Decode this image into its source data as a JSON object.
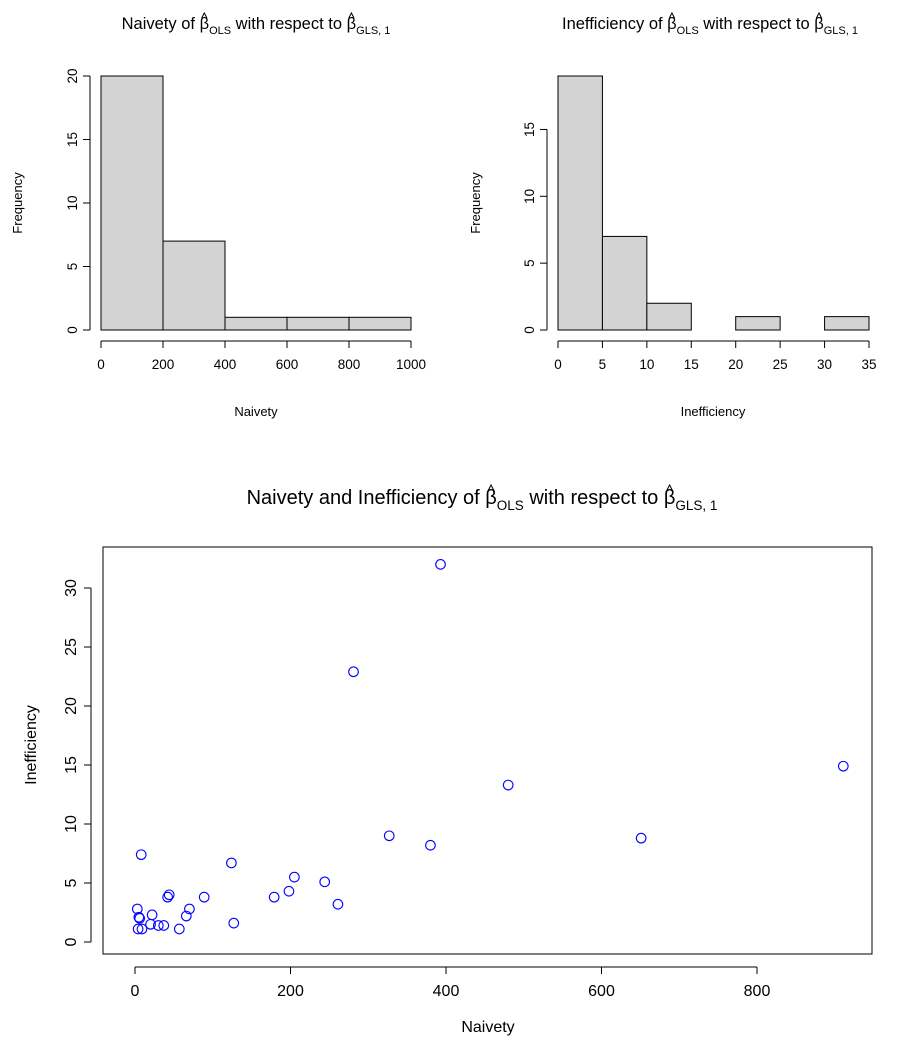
{
  "chart_data": [
    {
      "id": "hist_naivety",
      "type": "bar",
      "title": "Naivety of β̂OLS with respect to β̂GLS, 1",
      "title_parts": {
        "prefix": "Naivety of ",
        "hat1": "β",
        "sub1": "OLS",
        "mid": " with respect to ",
        "hat2": "β",
        "sub2": "GLS, 1"
      },
      "xlabel": "Naivety",
      "ylabel": "Frequency",
      "bins": [
        [
          0,
          200
        ],
        [
          200,
          400
        ],
        [
          400,
          600
        ],
        [
          600,
          800
        ],
        [
          800,
          1000
        ]
      ],
      "values": [
        20,
        7,
        1,
        1,
        1
      ],
      "xlim": [
        0,
        1000
      ],
      "ylim": [
        0,
        20
      ],
      "xticks": [
        0,
        200,
        400,
        600,
        800,
        1000
      ],
      "yticks": [
        0,
        5,
        10,
        15,
        20
      ],
      "fill_color": "#d3d3d3"
    },
    {
      "id": "hist_inefficiency",
      "type": "bar",
      "title": "Inefficiency of β̂OLS with respect to β̂GLS, 1",
      "title_parts": {
        "prefix": "Inefficiency of ",
        "hat1": "β",
        "sub1": "OLS",
        "mid": " with respect to ",
        "hat2": "β",
        "sub2": "GLS, 1"
      },
      "xlabel": "Inefficiency",
      "ylabel": "Frequency",
      "bins": [
        [
          0,
          5
        ],
        [
          5,
          10
        ],
        [
          10,
          15
        ],
        [
          15,
          20
        ],
        [
          20,
          25
        ],
        [
          25,
          30
        ],
        [
          30,
          35
        ]
      ],
      "values": [
        19,
        7,
        2,
        0,
        1,
        0,
        1
      ],
      "xlim": [
        0,
        35
      ],
      "ylim": [
        0,
        19
      ],
      "xticks": [
        0,
        5,
        10,
        15,
        20,
        25,
        30,
        35
      ],
      "yticks": [
        0,
        5,
        10,
        15
      ],
      "fill_color": "#d3d3d3"
    },
    {
      "id": "scatter_naivety_inefficiency",
      "type": "scatter",
      "title": "Naivety and Inefficiency of β̂OLS with respect to β̂GLS, 1",
      "title_parts": {
        "prefix": "Naivety and Inefficiency of ",
        "hat1": "β",
        "sub1": "OLS",
        "mid": " with respect to ",
        "hat2": "β",
        "sub2": "GLS, 1"
      },
      "xlabel": "Naivety",
      "ylabel": "Inefficiency",
      "xlim": [
        -37,
        943
      ],
      "ylim": [
        0,
        32
      ],
      "xticks": [
        0,
        200,
        400,
        600,
        800
      ],
      "yticks": [
        0,
        5,
        10,
        15,
        20,
        25,
        30
      ],
      "marker_color": "#0000ff",
      "points": [
        [
          3,
          2.8
        ],
        [
          5,
          2.1
        ],
        [
          6,
          2.0
        ],
        [
          4,
          1.1
        ],
        [
          9,
          1.1
        ],
        [
          8,
          7.4
        ],
        [
          20,
          1.5
        ],
        [
          22,
          2.3
        ],
        [
          30,
          1.4
        ],
        [
          37,
          1.4
        ],
        [
          42,
          3.8
        ],
        [
          44,
          4.0
        ],
        [
          57,
          1.1
        ],
        [
          66,
          2.2
        ],
        [
          70,
          2.8
        ],
        [
          89,
          3.8
        ],
        [
          124,
          6.7
        ],
        [
          127,
          1.6
        ],
        [
          179,
          3.8
        ],
        [
          198,
          4.3
        ],
        [
          205,
          5.5
        ],
        [
          244,
          5.1
        ],
        [
          261,
          3.2
        ],
        [
          281,
          22.9
        ],
        [
          327,
          9.0
        ],
        [
          380,
          8.2
        ],
        [
          393,
          32.0
        ],
        [
          480,
          13.3
        ],
        [
          651,
          8.8
        ],
        [
          911,
          14.9
        ]
      ]
    }
  ]
}
